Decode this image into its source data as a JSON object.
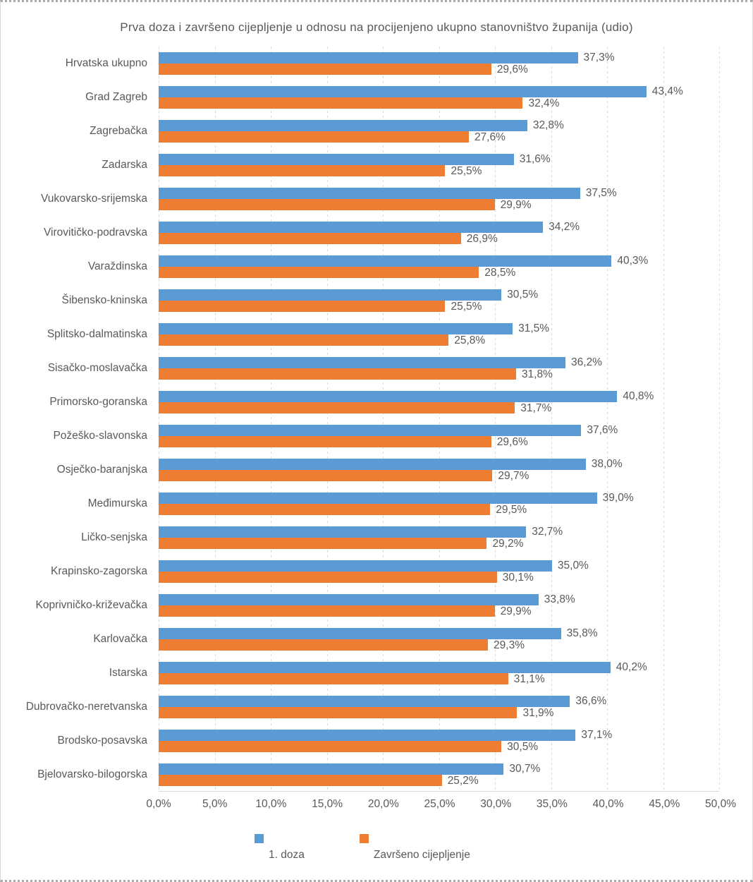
{
  "chart_data": {
    "type": "bar",
    "orientation": "horizontal",
    "title": "Prva doza i završeno cijepljenje u odnosu na procijenjeno ukupno stanovništvo županija (udio)",
    "categories": [
      "Hrvatska ukupno",
      "Grad Zagreb",
      "Zagrebačka",
      "Zadarska",
      "Vukovarsko-srijemska",
      "Virovitičko-podravska",
      "Varaždinska",
      "Šibensko-kninska",
      "Splitsko-dalmatinska",
      "Sisačko-moslavačka",
      "Primorsko-goranska",
      "Požeško-slavonska",
      "Osječko-baranjska",
      "Međimurska",
      "Ličko-senjska",
      "Krapinsko-zagorska",
      "Koprivničko-križevačka",
      "Karlovačka",
      "Istarska",
      "Dubrovačko-neretvanska",
      "Brodsko-posavska",
      "Bjelovarsko-bilogorska"
    ],
    "series": [
      {
        "name": "1. doza",
        "color": "#5b9bd5",
        "values": [
          37.3,
          43.4,
          32.8,
          31.6,
          37.5,
          34.2,
          40.3,
          30.5,
          31.5,
          36.2,
          40.8,
          37.6,
          38.0,
          39.0,
          32.7,
          35.0,
          33.8,
          35.8,
          40.2,
          36.6,
          37.1,
          30.7
        ]
      },
      {
        "name": "Završeno cijepljenje",
        "color": "#ed7d31",
        "values": [
          29.6,
          32.4,
          27.6,
          25.5,
          29.9,
          26.9,
          28.5,
          25.5,
          25.8,
          31.8,
          31.7,
          29.6,
          29.7,
          29.5,
          29.2,
          30.1,
          29.9,
          29.3,
          31.1,
          31.9,
          30.5,
          25.2
        ]
      }
    ],
    "data_labels": {
      "format": "decimal-comma-percent",
      "first_dose": [
        "37,3%",
        "43,4%",
        "32,8%",
        "31,6%",
        "37,5%",
        "34,2%",
        "40,3%",
        "30,5%",
        "31,5%",
        "36,2%",
        "40,8%",
        "37,6%",
        "38,0%",
        "39,0%",
        "32,7%",
        "35,0%",
        "33,8%",
        "35,8%",
        "40,2%",
        "36,6%",
        "37,1%",
        "30,7%"
      ],
      "completed": [
        "29,6%",
        "32,4%",
        "27,6%",
        "25,5%",
        "29,9%",
        "26,9%",
        "28,5%",
        "25,5%",
        "25,8%",
        "31,8%",
        "31,7%",
        "29,6%",
        "29,7%",
        "29,5%",
        "29,2%",
        "30,1%",
        "29,9%",
        "29,3%",
        "31,1%",
        "31,9%",
        "30,5%",
        "25,2%"
      ]
    },
    "x_axis": {
      "min": 0,
      "max": 50,
      "step": 5,
      "ticks": [
        "0,0%",
        "5,0%",
        "10,0%",
        "15,0%",
        "20,0%",
        "25,0%",
        "30,0%",
        "35,0%",
        "40,0%",
        "45,0%",
        "50,0%"
      ]
    },
    "legend": {
      "position": "bottom",
      "items": [
        {
          "label": "1. doza",
          "color": "#5b9bd5"
        },
        {
          "label": "Završeno cijepljenje",
          "color": "#ed7d31"
        }
      ]
    },
    "grid": true,
    "colors": {
      "series1": "#5b9bd5",
      "series2": "#ed7d31",
      "text": "#595959",
      "gridline": "#d9d9d9"
    }
  }
}
